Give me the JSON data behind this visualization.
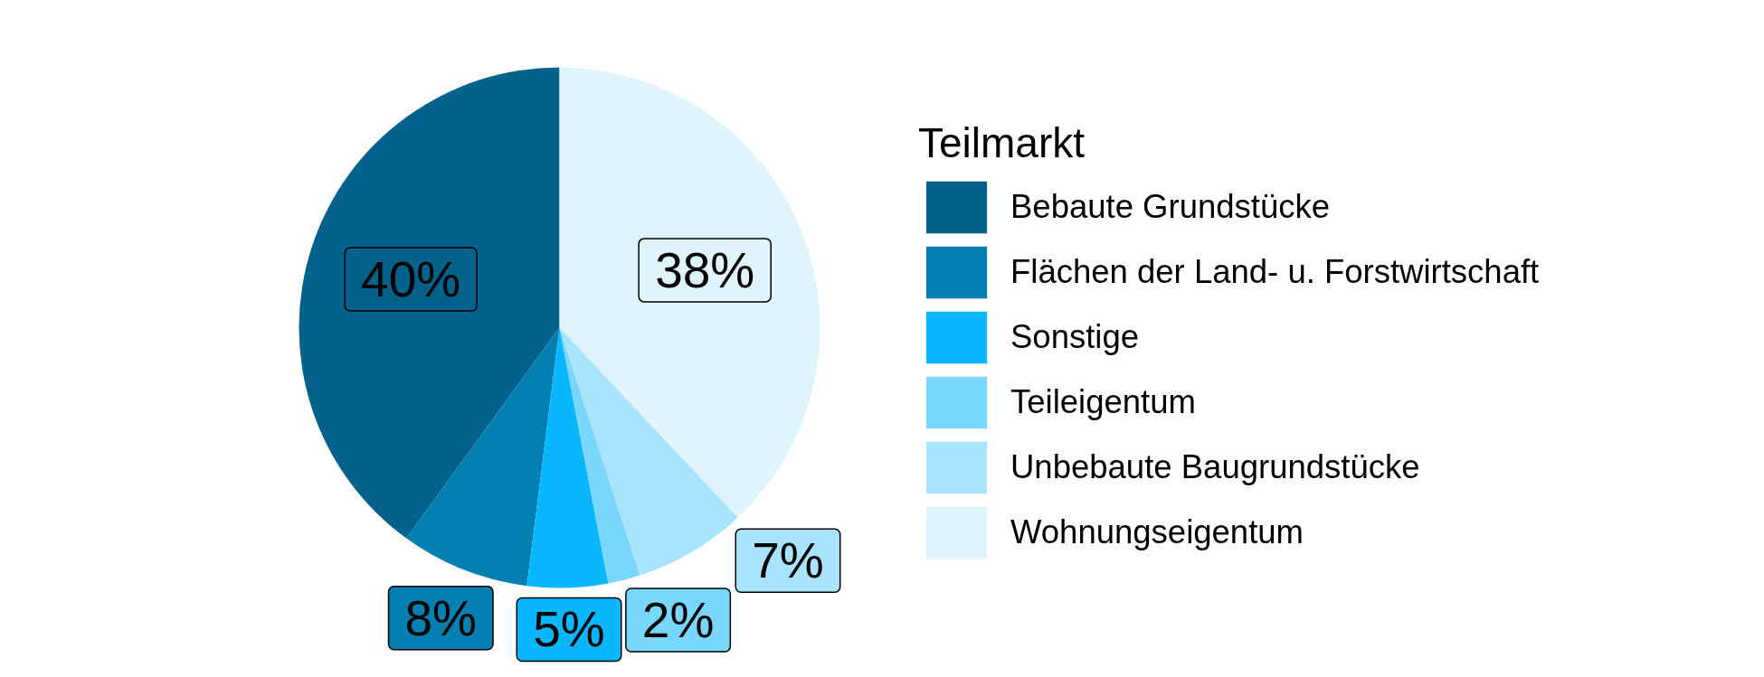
{
  "chart_data": {
    "type": "pie",
    "legend_title": "Teilmarkt",
    "categories": [
      "Bebaute Grundstücke",
      "Flächen der Land- u. Forstwirtschaft",
      "Sonstige",
      "Teileigentum",
      "Unbebaute Baugrundstücke",
      "Wohnungseigentum"
    ],
    "values": [
      40,
      8,
      5,
      2,
      7,
      38
    ],
    "colors": [
      "#03628b",
      "#037fb2",
      "#09b7fe",
      "#79d7fd",
      "#a8e4fd",
      "#e0f4fd"
    ],
    "value_labels": [
      "40%",
      "8%",
      "5%",
      "2%",
      "7%",
      "38%"
    ],
    "legend": "right"
  }
}
